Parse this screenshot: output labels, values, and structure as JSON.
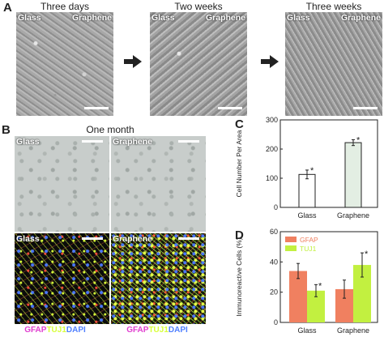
{
  "panel_a": {
    "letter": "A",
    "titles": [
      "Three days",
      "Two weeks",
      "Three weeks"
    ],
    "labels": [
      "Glass",
      "Graphene",
      "Glass",
      "Graphene",
      "Glass",
      "Graphene"
    ]
  },
  "panel_b": {
    "letter": "B",
    "title": "One month",
    "labels": [
      "Glass",
      "Graphene",
      "Glass",
      "Graphene"
    ],
    "stain": {
      "gfap": "GFAP",
      "tuj1": "TUJ1",
      "dapi": "DAPI"
    },
    "stain_colors": {
      "gfap": "#e040d0",
      "tuj1": "#d8ff3a",
      "dapi": "#5080ff"
    }
  },
  "panel_c": {
    "letter": "C"
  },
  "panel_d": {
    "letter": "D"
  },
  "chart_data": [
    {
      "type": "bar",
      "panel": "C",
      "categories": [
        "Glass",
        "Graphene"
      ],
      "values": [
        113,
        222
      ],
      "errors": [
        15,
        10
      ],
      "significance": [
        "*",
        "*"
      ],
      "ylabel": "Cell Number Per Area",
      "ylim": [
        0,
        300
      ],
      "yticks": [
        0,
        100,
        200,
        300
      ],
      "colors": [
        "#ffffff",
        "#e3eee3"
      ]
    },
    {
      "type": "bar",
      "panel": "D",
      "categories": [
        "Glass",
        "Graphene"
      ],
      "series": [
        {
          "name": "GFAP",
          "values": [
            34,
            22
          ],
          "errors": [
            5,
            6
          ],
          "color": "#f08060"
        },
        {
          "name": "TUJ1",
          "values": [
            21,
            38
          ],
          "errors": [
            4,
            8
          ],
          "color": "#c2f040"
        }
      ],
      "significance": [
        [
          "",
          "*"
        ],
        [
          "",
          "*"
        ]
      ],
      "ylabel": "Immunoreactive Cells (%)",
      "ylim": [
        0,
        60
      ],
      "yticks": [
        0,
        20,
        40,
        60
      ],
      "legend": "top-left"
    }
  ]
}
